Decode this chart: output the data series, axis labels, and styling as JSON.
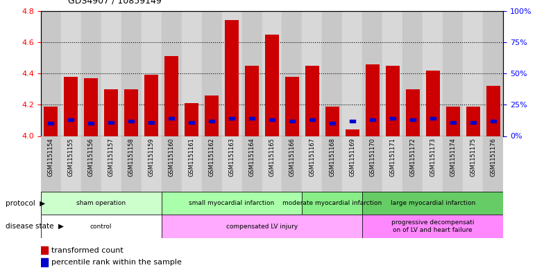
{
  "title": "GDS4907 / 10859149",
  "samples": [
    "GSM1151154",
    "GSM1151155",
    "GSM1151156",
    "GSM1151157",
    "GSM1151158",
    "GSM1151159",
    "GSM1151160",
    "GSM1151161",
    "GSM1151162",
    "GSM1151163",
    "GSM1151164",
    "GSM1151165",
    "GSM1151166",
    "GSM1151167",
    "GSM1151168",
    "GSM1151169",
    "GSM1151170",
    "GSM1151171",
    "GSM1151172",
    "GSM1151173",
    "GSM1151174",
    "GSM1151175",
    "GSM1151176"
  ],
  "transformed_count": [
    4.19,
    4.38,
    4.37,
    4.3,
    4.3,
    4.39,
    4.51,
    4.21,
    4.26,
    4.74,
    4.45,
    4.65,
    4.38,
    4.45,
    4.19,
    4.04,
    4.46,
    4.45,
    4.3,
    4.42,
    4.19,
    4.19,
    4.32
  ],
  "percentile_rank": [
    10,
    13,
    10,
    11,
    12,
    11,
    14,
    11,
    12,
    14,
    14,
    13,
    12,
    13,
    10,
    12,
    13,
    14,
    13,
    14,
    11,
    11,
    12
  ],
  "ylim_left": [
    4.0,
    4.8
  ],
  "ylim_right": [
    0,
    100
  ],
  "yticks_left": [
    4.0,
    4.2,
    4.4,
    4.6,
    4.8
  ],
  "yticks_right": [
    0,
    25,
    50,
    75,
    100
  ],
  "bar_color": "#cc0000",
  "dot_color": "#0000cc",
  "bar_bottom": 4.0,
  "protocol_groups": [
    {
      "label": "sham operation",
      "start": 0,
      "end": 6,
      "color": "#ccffcc"
    },
    {
      "label": "small myocardial infarction",
      "start": 6,
      "end": 13,
      "color": "#aaffaa"
    },
    {
      "label": "moderate myocardial infarction",
      "start": 13,
      "end": 16,
      "color": "#88ee88"
    },
    {
      "label": "large myocardial infarction",
      "start": 16,
      "end": 23,
      "color": "#66cc66"
    }
  ],
  "disease_groups": [
    {
      "label": "control",
      "start": 0,
      "end": 6,
      "color": "#ffffff"
    },
    {
      "label": "compensated LV injury",
      "start": 6,
      "end": 16,
      "color": "#ffaaff"
    },
    {
      "label": "progressive decompensati\non of LV and heart failure",
      "start": 16,
      "end": 23,
      "color": "#ff88ff"
    }
  ]
}
